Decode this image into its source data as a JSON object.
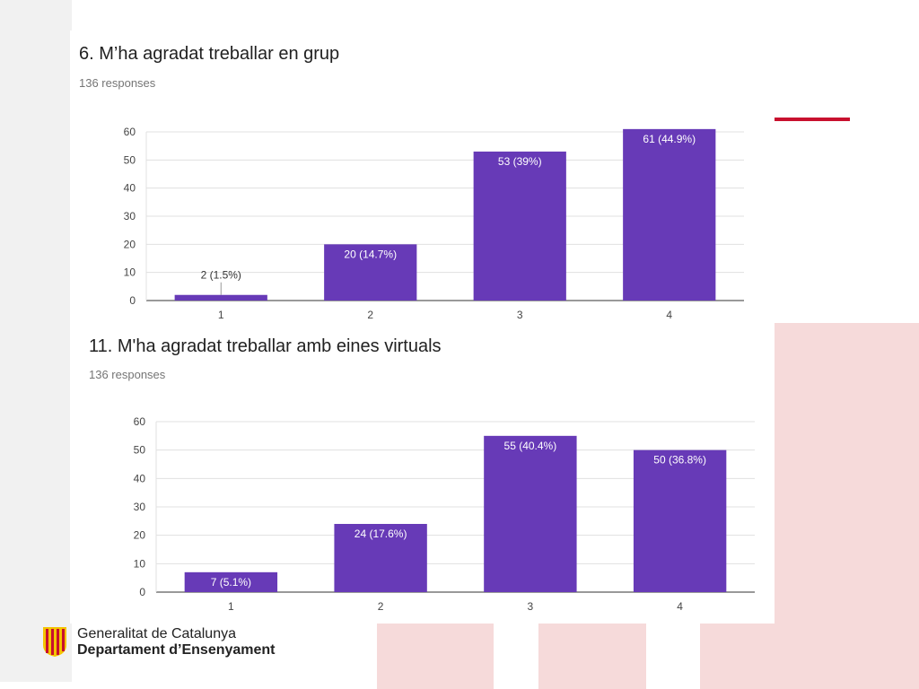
{
  "charts": [
    {
      "question": "6. M’ha agradat treballar en grup",
      "responses": "136 responses"
    },
    {
      "question": "11. M'ha agradat treballar amb eines virtuals",
      "responses": "136 responses"
    }
  ],
  "footer": {
    "org_name": "Generalitat de Catalunya",
    "department": "Departament d’Ensenyament"
  },
  "colors": {
    "bar": "#673ab7",
    "accent_red": "#c8102e"
  },
  "chart_data": [
    {
      "type": "bar",
      "title": "6. M’ha agradat treballar en grup",
      "subtitle": "136 responses",
      "categories": [
        "1",
        "2",
        "3",
        "4"
      ],
      "values": [
        2,
        20,
        53,
        61
      ],
      "data_labels": [
        "2 (1.5%)",
        "20 (14.7%)",
        "53 (39%)",
        "61 (44.9%)"
      ],
      "ylim": [
        0,
        60
      ],
      "yticks": [
        0,
        10,
        20,
        30,
        40,
        50,
        60
      ],
      "grid": true,
      "xlabel": "",
      "ylabel": ""
    },
    {
      "type": "bar",
      "title": "11. M'ha agradat treballar amb eines virtuals",
      "subtitle": "136 responses",
      "categories": [
        "1",
        "2",
        "3",
        "4"
      ],
      "values": [
        7,
        24,
        55,
        50
      ],
      "data_labels": [
        "7 (5.1%)",
        "24 (17.6%)",
        "55 (40.4%)",
        "50 (36.8%)"
      ],
      "ylim": [
        0,
        60
      ],
      "yticks": [
        0,
        10,
        20,
        30,
        40,
        50,
        60
      ],
      "grid": true,
      "xlabel": "",
      "ylabel": ""
    }
  ]
}
